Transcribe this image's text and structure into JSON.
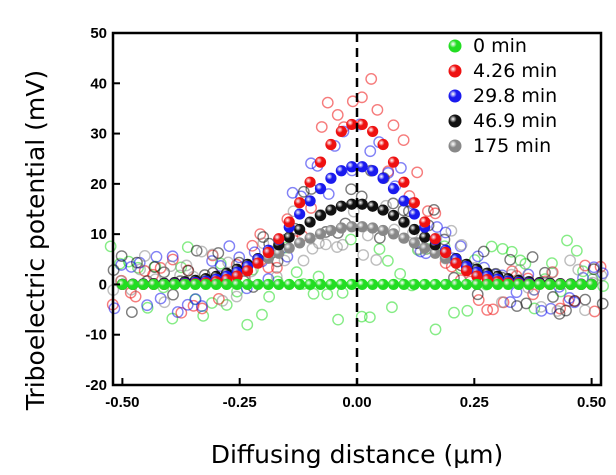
{
  "chart_data": {
    "type": "scatter",
    "xlabel": "Diffusing distance (μm)",
    "ylabel": "Triboelectric potential (mV)",
    "xlim": [
      -0.52,
      0.52
    ],
    "ylim": [
      -20,
      50
    ],
    "xticks": [
      "-0.50",
      "-0.25",
      "0.00",
      "0.25",
      "0.50"
    ],
    "xtick_values": [
      -0.5,
      -0.25,
      0,
      0.25,
      0.5
    ],
    "yticks": [
      "-20",
      "-10",
      "0",
      "10",
      "20",
      "30",
      "40",
      "50"
    ],
    "ytick_values": [
      -20,
      -10,
      0,
      10,
      20,
      30,
      40,
      50
    ],
    "vline_x": 0,
    "legend_position": "top-right",
    "series": [
      {
        "name": "0 min",
        "color": "#22dd22",
        "center": 0,
        "amplitude": 0,
        "sigma": 0.15
      },
      {
        "name": "4.26 min",
        "color": "#ee1111",
        "center": 0,
        "amplitude": 32,
        "sigma": 0.105
      },
      {
        "name": "29.8 min",
        "color": "#1a1aee",
        "center": 0,
        "amplitude": 23.5,
        "sigma": 0.12
      },
      {
        "name": "46.9 min",
        "color": "#111111",
        "center": 0,
        "amplitude": 16,
        "sigma": 0.14
      },
      {
        "name": "175 min",
        "color": "#888888",
        "center": 0,
        "amplitude": 11.5,
        "sigma": 0.15
      }
    ]
  }
}
